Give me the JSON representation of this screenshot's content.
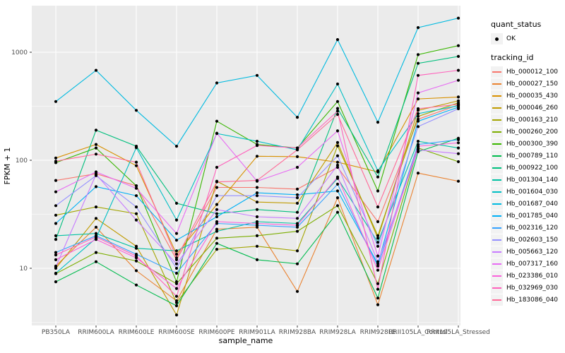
{
  "style": {
    "figure_background": "#FFFFFF",
    "panel_background": "#EBEBEB",
    "grid_color": "#FFFFFF",
    "tick_label_color": "#4D4D4D",
    "tick_mark_color": "#333333",
    "point_color": "#000000",
    "legend_key_background": "#F2F2F2"
  },
  "chart_data": {
    "type": "line",
    "title": "",
    "xlabel": "sample_name",
    "ylabel": "FPKM + 1",
    "x_categories": [
      "PB350LA",
      "RRIM600LA",
      "RRIM600LE",
      "RRIM600SE",
      "RRIM600PE",
      "RRIM901LA",
      "RRIM928BA",
      "RRIM928LA",
      "RRIM928LE",
      "RRII105LA_Control",
      "RRII105LA_Stressed"
    ],
    "y_scale": "log10",
    "y_tick_labels": [
      "10",
      "100",
      "1000"
    ],
    "y_tick_values": [
      10,
      100,
      1000
    ],
    "y_minor_values": [
      3.1623,
      31.623,
      316.23,
      3162.3
    ],
    "ylim": [
      3,
      2700
    ],
    "grid": true,
    "legend_position": "right",
    "marker": {
      "shape": "point",
      "color": "#000000"
    },
    "legend": {
      "quant_status": {
        "title": "quant_status",
        "items": [
          {
            "label": "OK",
            "marker": "point",
            "color": "#000000"
          }
        ]
      },
      "tracking_id": {
        "title": "tracking_id"
      }
    },
    "series": [
      {
        "name": "Hb_000012_100",
        "color": "#F8766D",
        "values": [
          65,
          75,
          58,
          12,
          56,
          56,
          54,
          86,
          27,
          240,
          325
        ]
      },
      {
        "name": "Hb_000027_150",
        "color": "#EA8331",
        "values": [
          10.5,
          24,
          9.5,
          5.0,
          23,
          24,
          6.1,
          45,
          4.6,
          76,
          64
        ]
      },
      {
        "name": "Hb_000035_430",
        "color": "#D89000",
        "values": [
          105,
          140,
          89,
          13.5,
          39,
          109,
          108,
          96,
          78,
          370,
          385
        ]
      },
      {
        "name": "Hb_000046_260",
        "color": "#C09B00",
        "values": [
          10,
          29,
          16,
          3.7,
          64,
          41,
          40,
          146,
          19,
          290,
          355
        ]
      },
      {
        "name": "Hb_000163_210",
        "color": "#A3A500",
        "values": [
          31,
          37,
          32,
          4.8,
          15,
          16,
          14.5,
          136,
          20,
          255,
          340
        ]
      },
      {
        "name": "Hb_000260_200",
        "color": "#7CAE00",
        "values": [
          8.9,
          14,
          11.7,
          7.2,
          19,
          20,
          22,
          38,
          7.2,
          130,
          97
        ]
      },
      {
        "name": "Hb_000300_390",
        "color": "#39B600",
        "values": [
          95,
          130,
          58,
          7.5,
          230,
          140,
          130,
          350,
          52,
          950,
          1150
        ]
      },
      {
        "name": "Hb_000789_110",
        "color": "#00BB4E",
        "values": [
          7.5,
          11.5,
          7.0,
          4.5,
          17,
          12,
          11,
          33,
          5.3,
          120,
          160
        ]
      },
      {
        "name": "Hb_000922_100",
        "color": "#00BF7D",
        "values": [
          18.5,
          190,
          135,
          40,
          32,
          35,
          33,
          302,
          70,
          790,
          915
        ]
      },
      {
        "name": "Hb_001304_140",
        "color": "#00C1A3",
        "values": [
          20,
          21,
          15.3,
          14.5,
          22,
          27,
          26,
          68,
          17.4,
          150,
          130
        ]
      },
      {
        "name": "Hb_001604_030",
        "color": "#00BFC4",
        "values": [
          9.0,
          19,
          131,
          28,
          177,
          150,
          125,
          508,
          80,
          270,
          320
        ]
      },
      {
        "name": "Hb_001687_040",
        "color": "#00BAE0",
        "values": [
          350,
          680,
          290,
          135,
          520,
          610,
          250,
          1310,
          225,
          1690,
          2070
        ]
      },
      {
        "name": "Hb_001785_040",
        "color": "#00B0F6",
        "values": [
          26,
          57,
          47,
          18.2,
          30,
          50,
          48,
          52,
          11,
          230,
          310
        ]
      },
      {
        "name": "Hb_002316_120",
        "color": "#35A2FF",
        "values": [
          14,
          20,
          13.5,
          9.0,
          26,
          25,
          24,
          60,
          10.5,
          140,
          155
        ]
      },
      {
        "name": "Hb_002603_150",
        "color": "#9590FF",
        "values": [
          38,
          72,
          37,
          10,
          47,
          47,
          45,
          110,
          16,
          205,
          300
        ]
      },
      {
        "name": "Hb_005663_120",
        "color": "#C77CFF",
        "values": [
          10.3,
          74,
          28,
          11,
          35,
          30,
          29,
          90,
          11.5,
          125,
          115
        ]
      },
      {
        "name": "Hb_007317_160",
        "color": "#E76BF3",
        "values": [
          51,
          78,
          55,
          21,
          178,
          64,
          86,
          187,
          13,
          420,
          550
        ]
      },
      {
        "name": "Hb_023386_010",
        "color": "#FA62DB",
        "values": [
          12,
          18.5,
          12.5,
          6.5,
          27,
          26,
          25,
          70,
          9.6,
          135,
          145
        ]
      },
      {
        "name": "Hb_032969_030",
        "color": "#FF62BC",
        "values": [
          13.3,
          19.5,
          13,
          5.5,
          86,
          137,
          130,
          285,
          6.4,
          610,
          680
        ]
      },
      {
        "name": "Hb_183086_040",
        "color": "#FF6A98",
        "values": [
          98,
          114,
          96,
          12.5,
          63,
          65,
          125,
          266,
          37,
          300,
          330
        ]
      }
    ]
  }
}
